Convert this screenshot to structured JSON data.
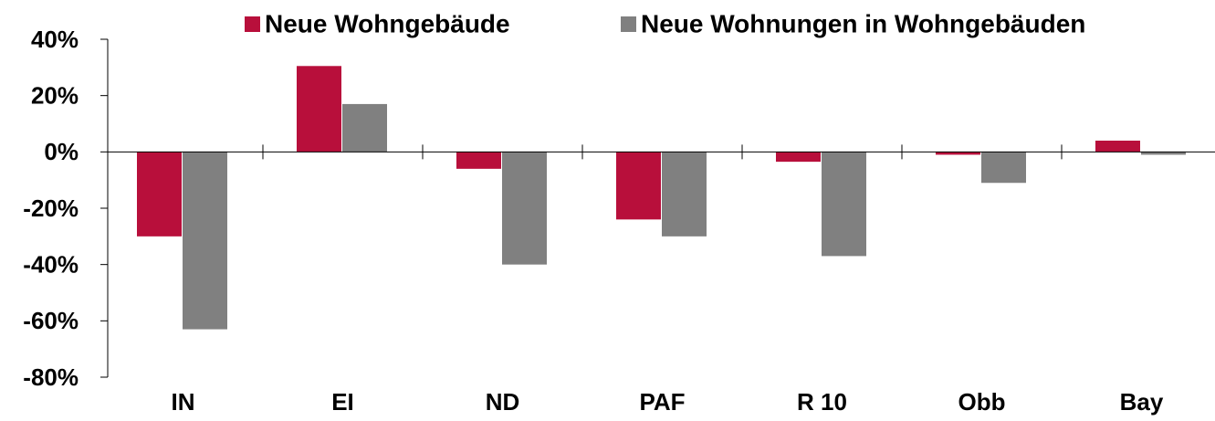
{
  "chart_data": {
    "type": "bar",
    "categories": [
      "IN",
      "EI",
      "ND",
      "PAF",
      "R 10",
      "Obb",
      "Bay"
    ],
    "series": [
      {
        "name": "Neue Wohngebäude",
        "color": "#b80f3b",
        "values": [
          -30,
          30.5,
          -6,
          -24,
          -3.5,
          -1,
          4
        ]
      },
      {
        "name": "Neue Wohnungen in Wohngebäuden",
        "color": "#808080",
        "values": [
          -63,
          17,
          -40,
          -30,
          -37,
          -11,
          -1
        ]
      }
    ],
    "ylim": [
      -80,
      40
    ],
    "yticks": [
      {
        "value": -80,
        "label": "-80%"
      },
      {
        "value": -60,
        "label": "-60%"
      },
      {
        "value": -40,
        "label": "-40%"
      },
      {
        "value": -20,
        "label": "-20%"
      },
      {
        "value": 0,
        "label": "0%"
      },
      {
        "value": 20,
        "label": "20%"
      },
      {
        "value": 40,
        "label": "40%"
      }
    ]
  }
}
